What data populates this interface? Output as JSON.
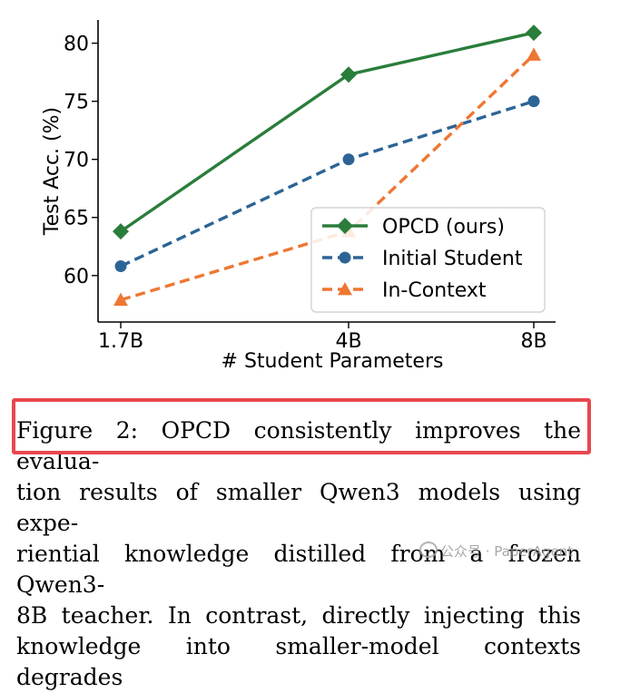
{
  "chart_data": {
    "type": "line",
    "categories": [
      "1.7B",
      "4B",
      "8B"
    ],
    "xlabel": "# Student Parameters",
    "ylabel": "Test Acc. (%)",
    "yticks": [
      60,
      65,
      70,
      75,
      80
    ],
    "ylim": [
      56.0,
      82.0
    ],
    "legend_position": "lower-right",
    "series": [
      {
        "name": "OPCD (ours)",
        "values": [
          63.8,
          77.3,
          80.9
        ],
        "color": "#2a7d3b",
        "marker": "diamond",
        "style": "solid"
      },
      {
        "name": "Initial Student",
        "values": [
          60.8,
          70.0,
          75.0
        ],
        "color": "#2d6496",
        "marker": "circle",
        "style": "dashed"
      },
      {
        "name": "In-Context",
        "values": [
          57.9,
          63.8,
          79.0
        ],
        "color": "#ee7733",
        "marker": "triangle",
        "style": "dashed"
      }
    ]
  },
  "caption": {
    "lines": [
      "Figure 2: OPCD consistently improves the evalua-",
      "tion results of smaller Qwen3 models using expe-",
      "riential knowledge distilled from a frozen Qwen3-",
      "8B teacher.  In contrast, directly injecting this",
      "knowledge into smaller-model contexts degrades"
    ]
  },
  "watermark": {
    "text": "公众号 · PaperAgent"
  }
}
